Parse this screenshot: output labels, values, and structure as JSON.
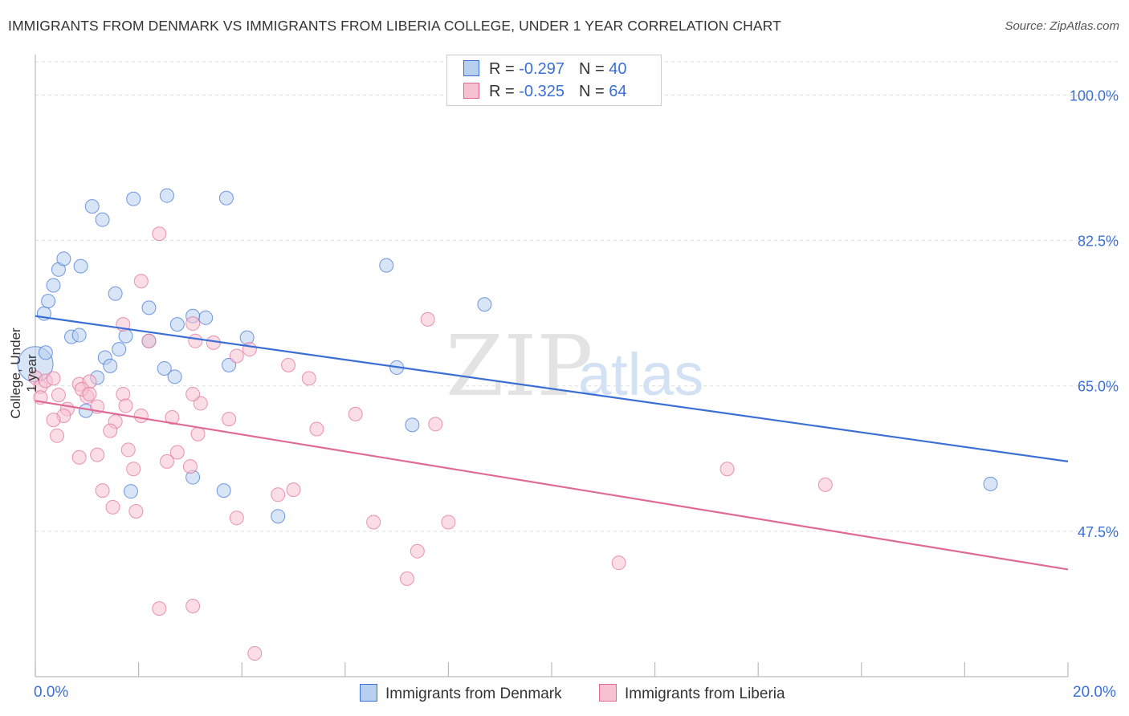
{
  "title": "IMMIGRANTS FROM DENMARK VS IMMIGRANTS FROM LIBERIA COLLEGE, UNDER 1 YEAR CORRELATION CHART",
  "source": "Source: ZipAtlas.com",
  "colors": {
    "blue": "#3b6fd4",
    "blue_fill": "#b8d0f0",
    "pink": "#e06a96",
    "pink_fill": "#f7c1d2",
    "grid": "#dddddd"
  },
  "legend": {
    "rows": [
      {
        "r_label": "R = ",
        "r_value": "-0.297",
        "n_label": "N = ",
        "n_value": "40"
      },
      {
        "r_label": "R = ",
        "r_value": "-0.325",
        "n_label": "N = ",
        "n_value": "64"
      }
    ]
  },
  "bottom_legend": [
    "Immigrants from Denmark",
    "Immigrants from Liberia"
  ],
  "x_axis": {
    "min_label": "0.0%",
    "max_label": "20.0%"
  },
  "watermark": {
    "zip": "ZIP",
    "atlas": "atlas"
  },
  "chart_data": {
    "type": "scatter",
    "title": "IMMIGRANTS FROM DENMARK VS IMMIGRANTS FROM LIBERIA COLLEGE, UNDER 1 YEAR CORRELATION CHART",
    "xlabel": "",
    "ylabel": "College, Under 1 year",
    "xlim": [
      0,
      20
    ],
    "ylim": [
      30,
      104
    ],
    "y_ticks": [
      47.5,
      65.0,
      82.5,
      100.0
    ],
    "y_tick_labels": [
      "47.5%",
      "65.0%",
      "82.5%",
      "100.0%"
    ],
    "grid": true,
    "series": [
      {
        "name": "Immigrants from Denmark",
        "color": "blue",
        "r": -0.297,
        "n": 40,
        "trend": {
          "x": [
            0,
            20
          ],
          "y": [
            73.4,
            55.9
          ]
        },
        "points": [
          [
            0.0,
            67.6
          ],
          [
            0.17,
            73.7
          ],
          [
            0.25,
            75.2
          ],
          [
            0.35,
            77.1
          ],
          [
            0.45,
            79.0
          ],
          [
            0.55,
            80.3
          ],
          [
            0.88,
            79.4
          ],
          [
            1.1,
            86.6
          ],
          [
            1.3,
            85.0
          ],
          [
            1.55,
            76.1
          ],
          [
            1.9,
            87.5
          ],
          [
            2.55,
            87.9
          ],
          [
            3.7,
            87.6
          ],
          [
            0.2,
            69.0
          ],
          [
            0.7,
            70.9
          ],
          [
            0.85,
            71.1
          ],
          [
            1.35,
            68.4
          ],
          [
            1.62,
            69.4
          ],
          [
            2.2,
            70.4
          ],
          [
            1.75,
            71.0
          ],
          [
            2.2,
            74.4
          ],
          [
            2.75,
            72.4
          ],
          [
            3.3,
            73.2
          ],
          [
            3.05,
            73.4
          ],
          [
            4.1,
            70.8
          ],
          [
            1.45,
            67.4
          ],
          [
            3.75,
            67.5
          ],
          [
            2.5,
            67.1
          ],
          [
            2.7,
            66.1
          ],
          [
            1.2,
            66.0
          ],
          [
            7.0,
            67.2
          ],
          [
            6.8,
            79.5
          ],
          [
            8.7,
            74.8
          ],
          [
            0.98,
            62.0
          ],
          [
            7.3,
            60.3
          ],
          [
            3.05,
            54.0
          ],
          [
            1.85,
            52.3
          ],
          [
            3.65,
            52.4
          ],
          [
            4.7,
            49.3
          ],
          [
            18.5,
            53.2
          ]
        ]
      },
      {
        "name": "Immigrants from Liberia",
        "color": "pink",
        "r": -0.325,
        "n": 64,
        "trend": {
          "x": [
            0,
            20
          ],
          "y": [
            63.2,
            42.9
          ]
        },
        "points": [
          [
            0.0,
            66.0
          ],
          [
            0.1,
            64.9
          ],
          [
            0.2,
            65.6
          ],
          [
            0.35,
            65.9
          ],
          [
            0.1,
            63.6
          ],
          [
            0.45,
            63.9
          ],
          [
            0.62,
            62.2
          ],
          [
            0.55,
            61.4
          ],
          [
            0.35,
            60.9
          ],
          [
            0.85,
            65.2
          ],
          [
            1.05,
            65.5
          ],
          [
            1.0,
            63.7
          ],
          [
            0.9,
            64.6
          ],
          [
            1.05,
            64.0
          ],
          [
            1.2,
            62.5
          ],
          [
            1.7,
            64.0
          ],
          [
            1.75,
            62.6
          ],
          [
            1.55,
            60.7
          ],
          [
            1.45,
            59.6
          ],
          [
            0.42,
            59.0
          ],
          [
            0.85,
            56.4
          ],
          [
            1.2,
            56.7
          ],
          [
            1.8,
            57.3
          ],
          [
            1.9,
            55.0
          ],
          [
            2.55,
            55.9
          ],
          [
            2.75,
            57.0
          ],
          [
            2.05,
            61.4
          ],
          [
            2.65,
            61.2
          ],
          [
            3.2,
            62.9
          ],
          [
            3.05,
            64.0
          ],
          [
            3.15,
            59.2
          ],
          [
            3.75,
            61.0
          ],
          [
            3.0,
            55.3
          ],
          [
            1.3,
            52.4
          ],
          [
            1.5,
            50.4
          ],
          [
            1.95,
            49.9
          ],
          [
            4.7,
            51.9
          ],
          [
            5.0,
            52.5
          ],
          [
            3.9,
            49.1
          ],
          [
            2.05,
            77.6
          ],
          [
            2.4,
            83.3
          ],
          [
            1.7,
            72.4
          ],
          [
            2.2,
            70.4
          ],
          [
            3.05,
            72.5
          ],
          [
            3.1,
            70.4
          ],
          [
            3.45,
            70.2
          ],
          [
            4.15,
            69.4
          ],
          [
            3.9,
            68.6
          ],
          [
            4.9,
            67.5
          ],
          [
            5.3,
            65.9
          ],
          [
            5.45,
            59.8
          ],
          [
            6.2,
            61.6
          ],
          [
            7.6,
            73.0
          ],
          [
            7.75,
            60.4
          ],
          [
            6.55,
            48.6
          ],
          [
            8.0,
            48.6
          ],
          [
            7.4,
            45.1
          ],
          [
            7.2,
            41.8
          ],
          [
            11.3,
            43.7
          ],
          [
            13.4,
            55.0
          ],
          [
            15.3,
            53.1
          ],
          [
            2.4,
            38.2
          ],
          [
            3.05,
            38.5
          ],
          [
            4.25,
            32.8
          ]
        ]
      }
    ]
  }
}
